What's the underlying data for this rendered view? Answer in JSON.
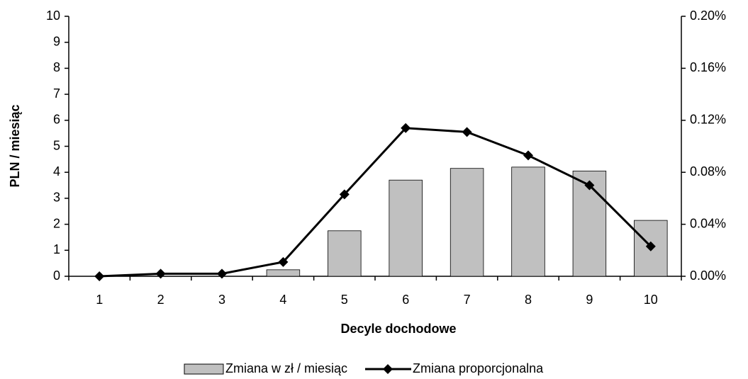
{
  "chart_data": {
    "type": "bar",
    "xlabel": "Decyle dochodowe",
    "ylabel": "PLN / miesiąc",
    "categories": [
      "1",
      "2",
      "3",
      "4",
      "5",
      "6",
      "7",
      "8",
      "9",
      "10"
    ],
    "series": [
      {
        "name": "Zmiana w zł / miesiąc",
        "type": "bar",
        "color": "#c0c0c0",
        "values": [
          0,
          0,
          0,
          0.25,
          1.75,
          3.7,
          4.15,
          4.2,
          4.05,
          2.15
        ]
      },
      {
        "name": "Zmiana proporcjonalna",
        "type": "line",
        "axis": "y2",
        "color": "#000000",
        "values": [
          0,
          0.002,
          0.002,
          0.011,
          0.063,
          0.114,
          0.111,
          0.093,
          0.07,
          0.023
        ]
      }
    ],
    "ylim": [
      0,
      10
    ],
    "yticks": [
      0,
      1,
      2,
      3,
      4,
      5,
      6,
      7,
      8,
      9,
      10
    ],
    "y2lim": [
      0,
      0.2
    ],
    "y2ticks": [
      {
        "value": 0,
        "label": "0.00%"
      },
      {
        "value": 0.04,
        "label": "0.04%"
      },
      {
        "value": 0.08,
        "label": "0.08%"
      },
      {
        "value": 0.12,
        "label": "0.12%"
      },
      {
        "value": 0.16,
        "label": "0.16%"
      },
      {
        "value": 0.2,
        "label": "0.20%"
      }
    ],
    "legend": "bottom"
  }
}
